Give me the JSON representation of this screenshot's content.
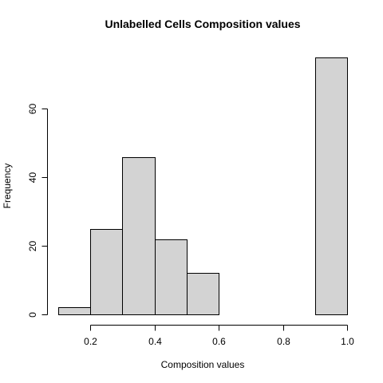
{
  "chart_data": {
    "type": "bar",
    "title": "Unlabelled Cells Composition values",
    "xlabel": "Composition values",
    "ylabel": "Frequency",
    "xlim": [
      0.1,
      1.0
    ],
    "ylim": [
      0,
      75
    ],
    "bins": [
      {
        "start": 0.1,
        "end": 0.2,
        "count": 2
      },
      {
        "start": 0.2,
        "end": 0.3,
        "count": 25
      },
      {
        "start": 0.3,
        "end": 0.4,
        "count": 46
      },
      {
        "start": 0.4,
        "end": 0.5,
        "count": 22
      },
      {
        "start": 0.5,
        "end": 0.6,
        "count": 12
      },
      {
        "start": 0.6,
        "end": 0.7,
        "count": 0
      },
      {
        "start": 0.7,
        "end": 0.8,
        "count": 0
      },
      {
        "start": 0.8,
        "end": 0.9,
        "count": 0
      },
      {
        "start": 0.9,
        "end": 1.0,
        "count": 75
      }
    ],
    "x_ticks": [
      0.2,
      0.4,
      0.6,
      0.8,
      1.0
    ],
    "x_tick_labels": [
      "0.2",
      "0.4",
      "0.6",
      "0.8",
      "1.0"
    ],
    "y_ticks": [
      0,
      20,
      40,
      60
    ],
    "y_tick_labels": [
      "0",
      "20",
      "40",
      "60"
    ],
    "bar_color": "#d3d3d3",
    "grid": false,
    "legend": "none"
  }
}
